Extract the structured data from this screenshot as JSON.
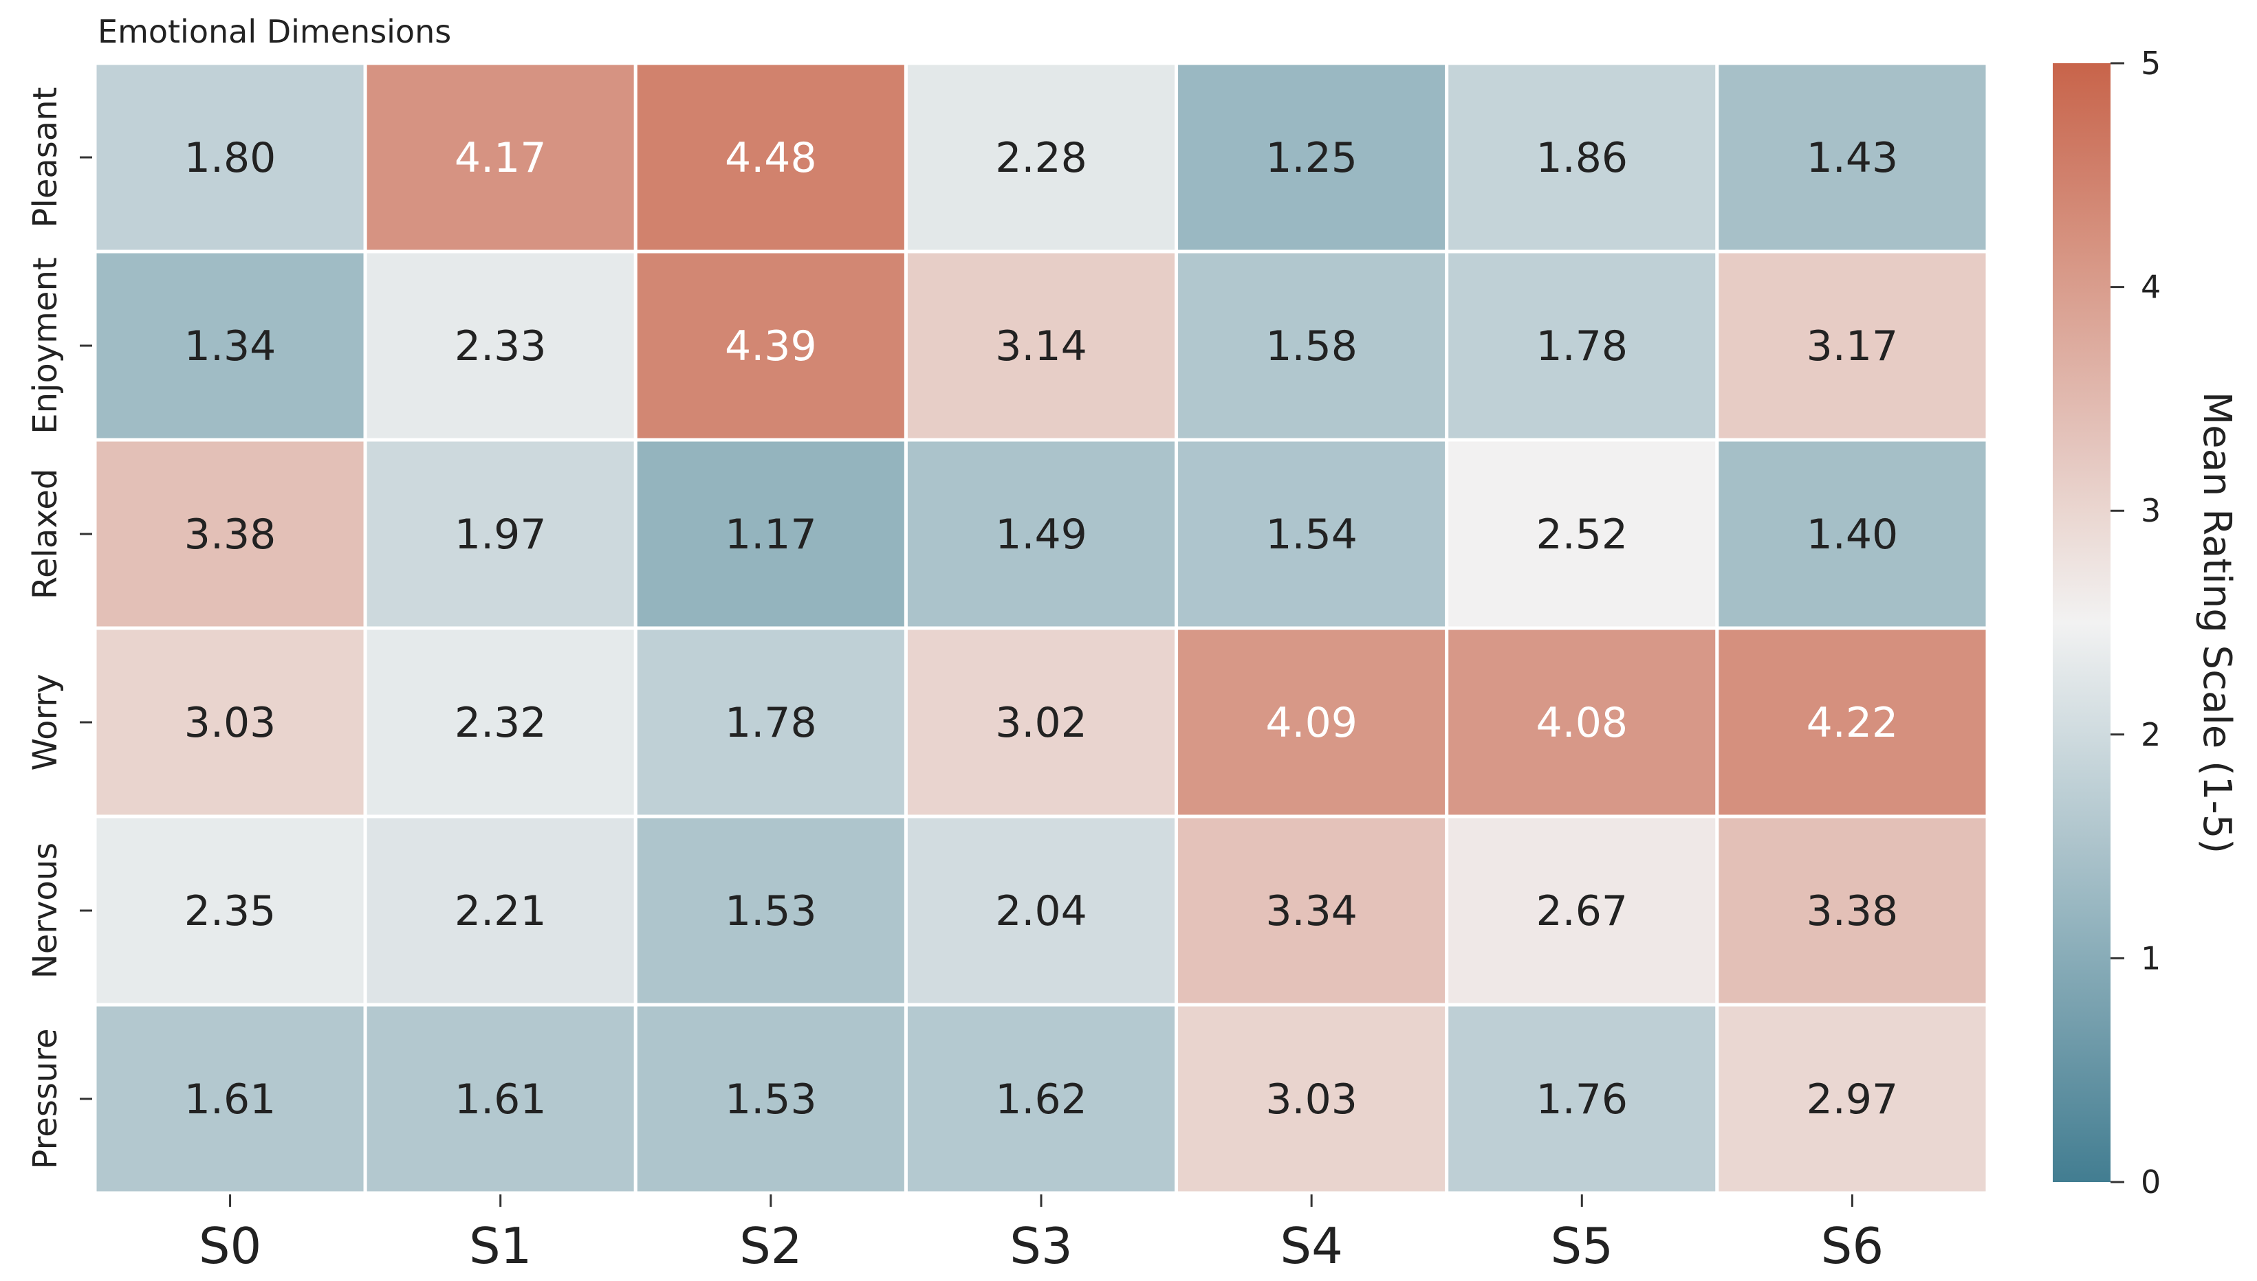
{
  "chart_data": {
    "type": "heatmap",
    "title": "Emotional Dimensions",
    "x_categories": [
      "S0",
      "S1",
      "S2",
      "S3",
      "S4",
      "S5",
      "S6"
    ],
    "y_categories": [
      "Pleasant",
      "Enjoyment",
      "Relaxed",
      "Worry",
      "Nervous",
      "Pressure"
    ],
    "values": [
      [
        1.8,
        4.17,
        4.48,
        2.28,
        1.25,
        1.86,
        1.43
      ],
      [
        1.34,
        2.33,
        4.39,
        3.14,
        1.58,
        1.78,
        3.17
      ],
      [
        3.38,
        1.97,
        1.17,
        1.49,
        1.54,
        2.52,
        1.4
      ],
      [
        3.03,
        2.32,
        1.78,
        3.02,
        4.09,
        4.08,
        4.22
      ],
      [
        2.35,
        2.21,
        1.53,
        2.04,
        3.34,
        2.67,
        3.38
      ],
      [
        1.61,
        1.61,
        1.53,
        1.62,
        3.03,
        1.76,
        2.97
      ]
    ],
    "display_labels": [
      [
        "1.80",
        "4.17",
        "4.48",
        "2.28",
        "1.25",
        "1.86",
        "1.43"
      ],
      [
        "1.34",
        "2.33",
        "4.39",
        "3.14",
        "1.58",
        "1.78",
        "3.17"
      ],
      [
        "3.38",
        "1.97",
        "1.17",
        "1.49",
        "1.54",
        "2.52",
        "1.40"
      ],
      [
        "3.03",
        "2.32",
        "1.78",
        "3.02",
        "4.09",
        "4.08",
        "4.22"
      ],
      [
        "2.35",
        "2.21",
        "1.53",
        "2.04",
        "3.34",
        "2.67",
        "3.38"
      ],
      [
        "1.61",
        "1.61",
        "1.53",
        "1.62",
        "3.03",
        "1.76",
        "2.97"
      ]
    ],
    "colorbar": {
      "label": "Mean Rating Scale (1-5)",
      "range": [
        0,
        5
      ],
      "ticks": [
        0,
        1,
        2,
        3,
        4,
        5
      ],
      "tick_labels": [
        "0",
        "1",
        "2",
        "3",
        "4",
        "5"
      ],
      "colormap": "diverging blue-gray to terracotta",
      "color_low": "#427d91",
      "color_mid": "#f2f2f2",
      "color_high": "#c8644a"
    },
    "annotation_text_colors": {
      "dark": "#222222",
      "light": "#ffffff"
    },
    "cell_border_color": "#ffffff"
  }
}
